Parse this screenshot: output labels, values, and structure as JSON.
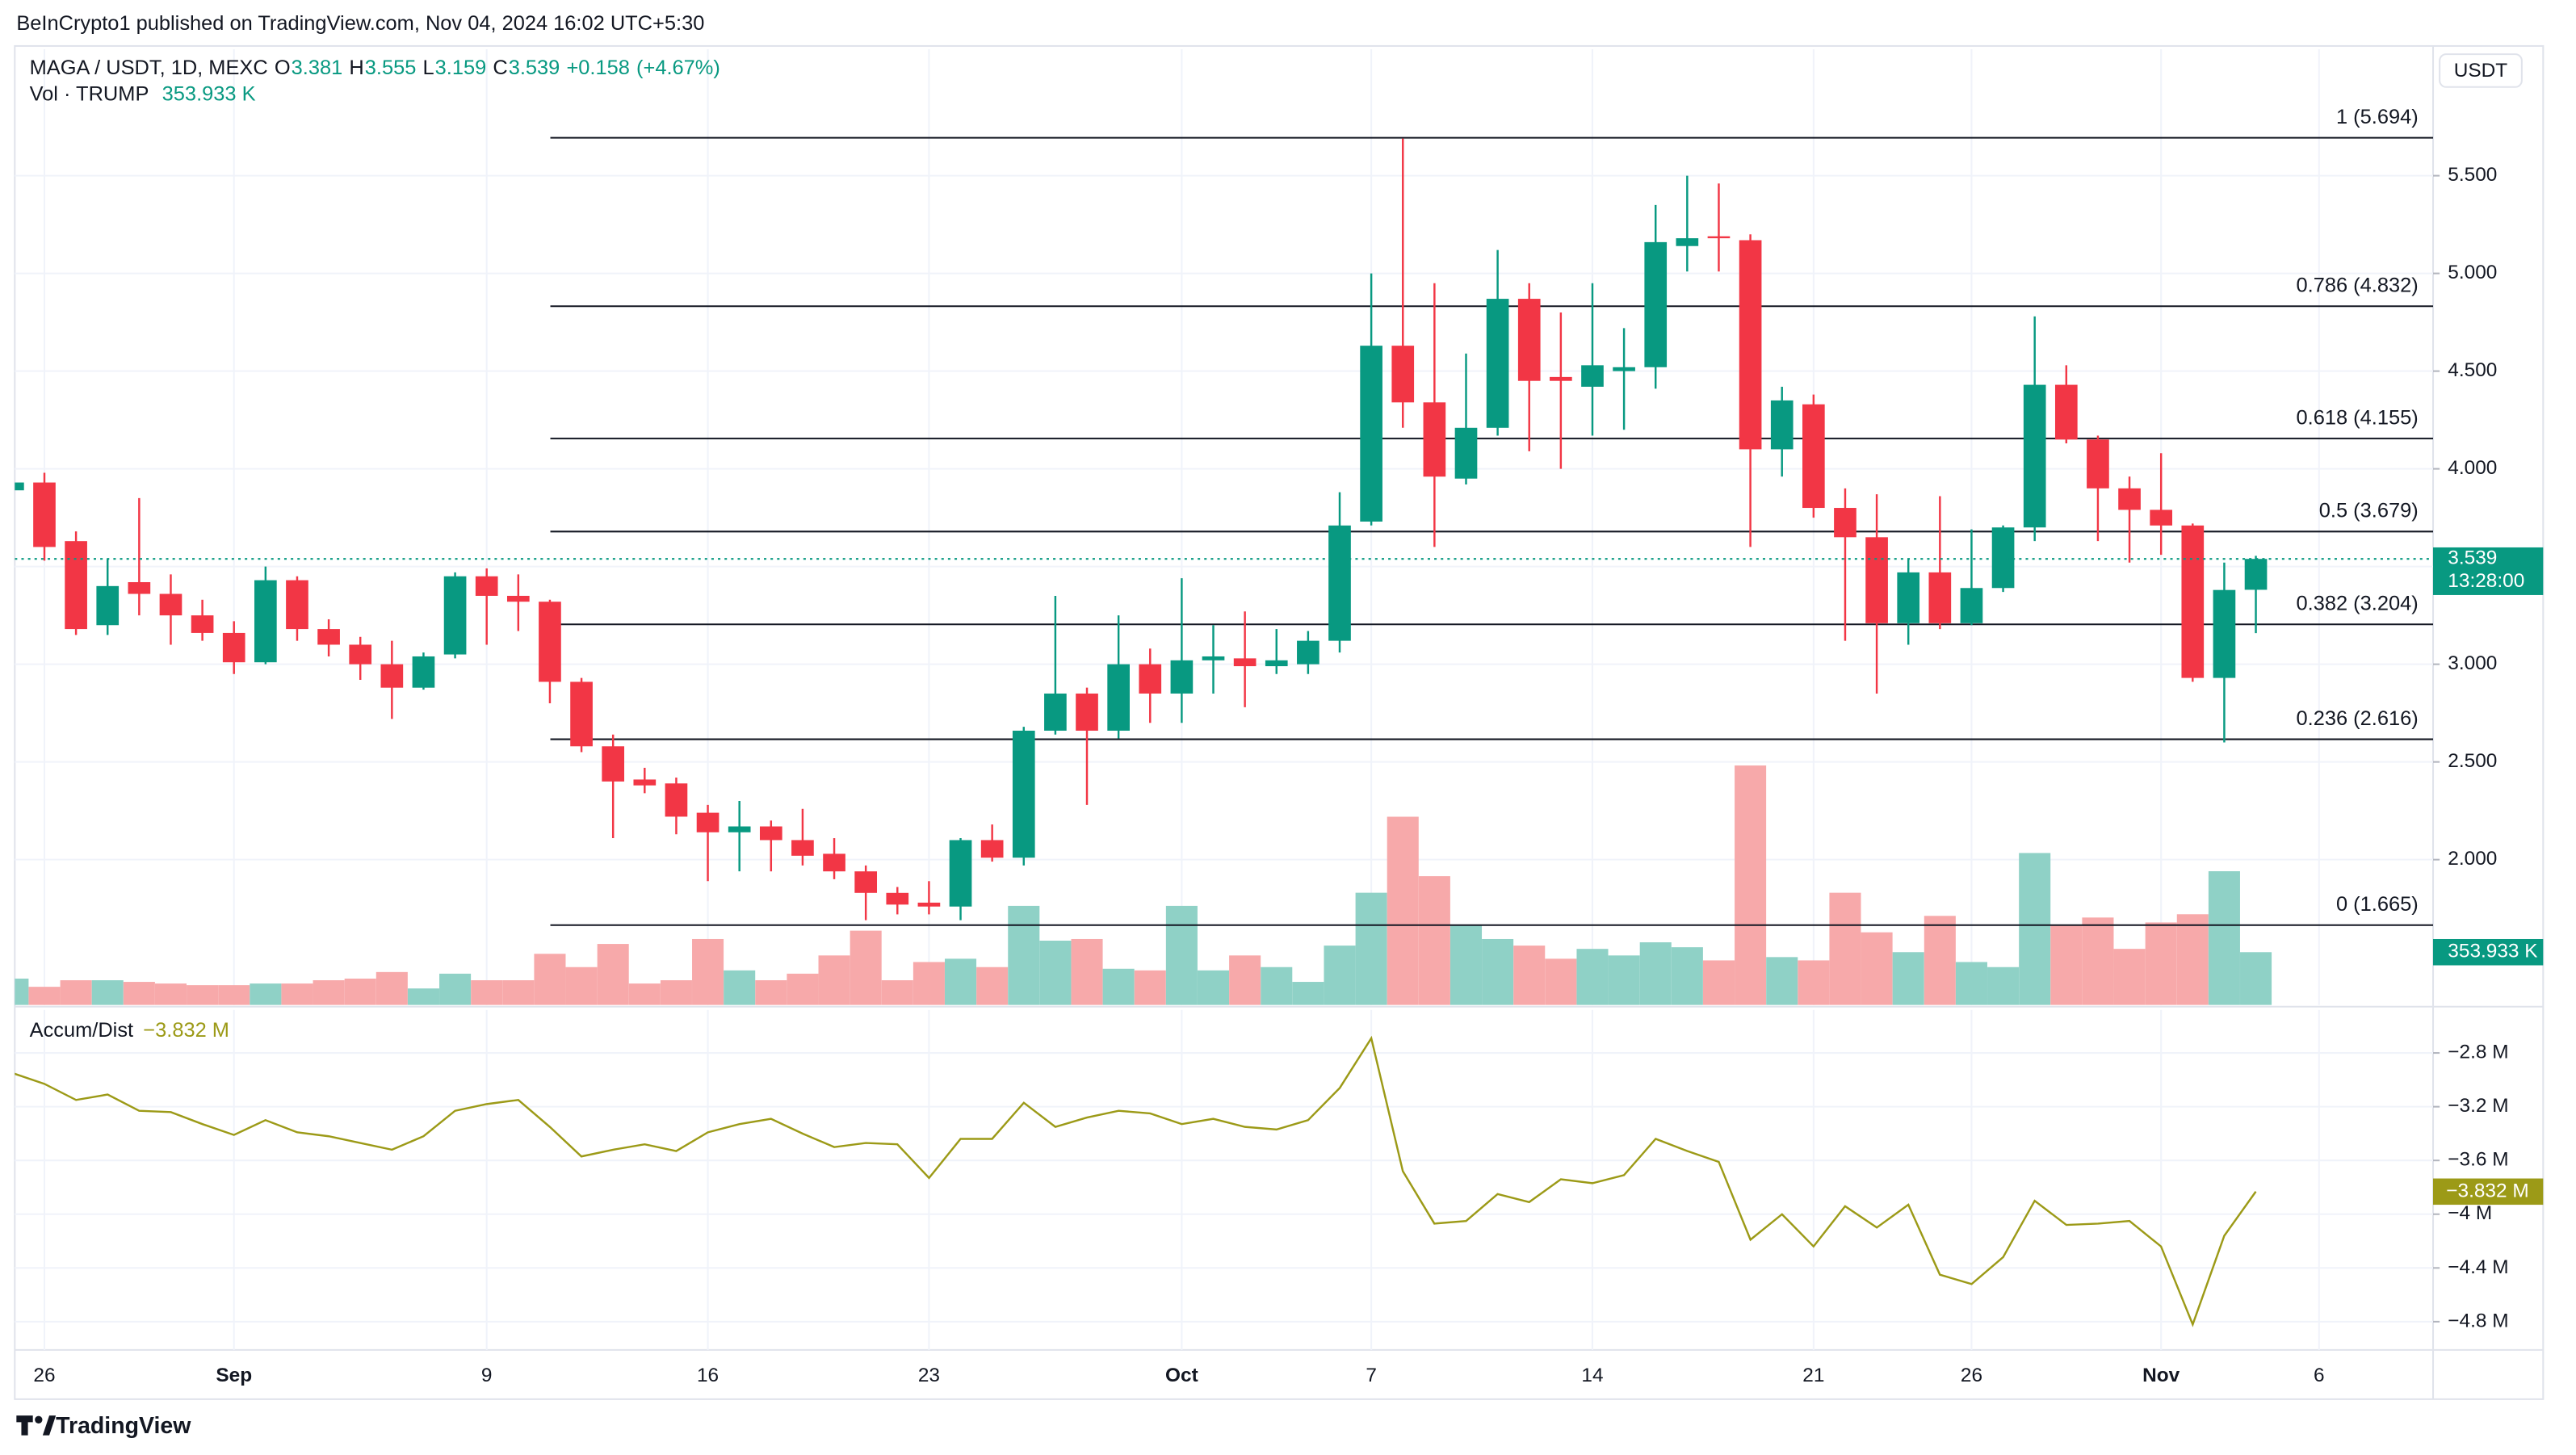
{
  "chart_data": {
    "type": "candlestick",
    "published": "BeInCrypto1 published on TradingView.com, Nov 04, 2024 16:02 UTC+5:30",
    "symbol": "MAGA / USDT, 1D, MEXC",
    "ohlc_legend": [
      {
        "label": "O",
        "value": 3.381
      },
      {
        "label": "H",
        "value": 3.555
      },
      {
        "label": "L",
        "value": 3.159
      },
      {
        "label": "C",
        "value": 3.539
      }
    ],
    "change": {
      "value": 0.158,
      "label": "+0.158"
    },
    "change_pct": {
      "value": 4.67,
      "label": "(+4.67%)"
    },
    "currency": "USDT",
    "brand": "TradingView",
    "categories": [
      null,
      "26",
      null,
      null,
      null,
      null,
      null,
      "Sep",
      null,
      null,
      null,
      null,
      null,
      null,
      null,
      "9",
      null,
      null,
      null,
      null,
      null,
      null,
      "16",
      null,
      null,
      null,
      null,
      null,
      null,
      "23",
      null,
      null,
      null,
      null,
      null,
      null,
      null,
      "Oct",
      null,
      null,
      null,
      null,
      null,
      "7",
      null,
      null,
      null,
      null,
      null,
      null,
      "14",
      null,
      null,
      null,
      null,
      null,
      null,
      "21",
      null,
      null,
      null,
      null,
      "26",
      null,
      null,
      null,
      null,
      null,
      "Nov",
      null,
      null,
      null,
      null,
      "6"
    ],
    "open": [
      3.89,
      3.93,
      3.63,
      3.2,
      3.42,
      3.36,
      3.25,
      3.16,
      3.01,
      3.43,
      3.18,
      3.1,
      3.0,
      2.88,
      3.05,
      3.45,
      3.35,
      3.32,
      2.91,
      2.58,
      2.41,
      2.39,
      2.24,
      2.14,
      2.17,
      2.1,
      2.03,
      1.94,
      1.83,
      1.78,
      1.76,
      2.1,
      2.01,
      2.66,
      2.85,
      2.66,
      3.0,
      2.85,
      3.02,
      3.03,
      2.99,
      3.0,
      3.12,
      3.73,
      4.63,
      4.34,
      3.95,
      4.21,
      4.87,
      4.47,
      4.42,
      4.5,
      4.52,
      5.14,
      5.19,
      5.17,
      4.1,
      4.33,
      3.8,
      3.65,
      3.21,
      3.47,
      3.21,
      3.39,
      3.7,
      4.43,
      4.15,
      3.9,
      3.79,
      3.71,
      2.93,
      3.381,
      null,
      null
    ],
    "high": [
      3.95,
      3.98,
      3.68,
      3.54,
      3.85,
      3.46,
      3.33,
      3.22,
      3.5,
      3.45,
      3.23,
      3.14,
      3.12,
      3.06,
      3.47,
      3.49,
      3.46,
      3.33,
      2.93,
      2.64,
      2.47,
      2.42,
      2.28,
      2.3,
      2.2,
      2.26,
      2.11,
      1.97,
      1.86,
      1.89,
      2.11,
      2.18,
      2.68,
      3.35,
      2.88,
      3.25,
      3.08,
      3.44,
      3.2,
      3.27,
      3.18,
      3.17,
      3.88,
      5.0,
      5.69,
      4.95,
      4.59,
      5.12,
      4.95,
      4.8,
      4.95,
      4.72,
      5.35,
      5.5,
      5.46,
      5.2,
      4.42,
      4.38,
      3.9,
      3.87,
      3.54,
      3.86,
      3.69,
      3.71,
      4.78,
      4.53,
      4.17,
      3.96,
      4.08,
      3.72,
      3.52,
      3.555,
      null,
      null
    ],
    "low": [
      3.88,
      3.53,
      3.15,
      3.15,
      3.25,
      3.1,
      3.12,
      2.95,
      3.0,
      3.12,
      3.04,
      2.92,
      2.72,
      2.87,
      3.03,
      3.1,
      3.17,
      2.8,
      2.55,
      2.11,
      2.34,
      2.13,
      1.89,
      1.94,
      1.94,
      1.97,
      1.9,
      1.69,
      1.72,
      1.72,
      1.69,
      1.99,
      1.97,
      2.64,
      2.28,
      2.62,
      2.7,
      2.7,
      2.85,
      2.78,
      2.95,
      2.95,
      3.06,
      3.71,
      4.21,
      3.6,
      3.92,
      4.17,
      4.09,
      4.0,
      4.17,
      4.2,
      4.41,
      5.01,
      5.01,
      3.6,
      3.96,
      3.75,
      3.12,
      2.85,
      3.1,
      3.18,
      3.2,
      3.37,
      3.63,
      4.13,
      3.63,
      3.52,
      3.56,
      2.91,
      2.6,
      3.159,
      null,
      null
    ],
    "close": [
      3.93,
      3.6,
      3.18,
      3.4,
      3.36,
      3.25,
      3.16,
      3.01,
      3.43,
      3.18,
      3.1,
      3.0,
      2.88,
      3.04,
      3.45,
      3.35,
      3.32,
      2.91,
      2.58,
      2.4,
      2.38,
      2.22,
      2.14,
      2.17,
      2.1,
      2.02,
      1.94,
      1.83,
      1.77,
      1.76,
      2.1,
      2.01,
      2.66,
      2.85,
      2.66,
      3.0,
      2.85,
      3.02,
      3.04,
      2.99,
      3.02,
      3.12,
      3.71,
      4.63,
      4.34,
      3.96,
      4.21,
      4.87,
      4.45,
      4.45,
      4.53,
      4.52,
      5.16,
      5.18,
      5.18,
      4.1,
      4.35,
      3.8,
      3.65,
      3.21,
      3.47,
      3.21,
      3.39,
      3.7,
      4.43,
      4.15,
      3.9,
      3.79,
      3.71,
      2.93,
      3.38,
      3.539,
      null,
      null
    ],
    "up_color": "#089981",
    "down_color": "#f23645",
    "ylim": [
      1.256,
      6.147
    ],
    "yticks": [
      {
        "value": 2,
        "label": "2.000"
      },
      {
        "value": 2.5,
        "label": "2.500"
      },
      {
        "value": 3,
        "label": "3.000"
      },
      {
        "value": 3.5,
        "label": "3.500"
      },
      {
        "value": 4,
        "label": "4.000"
      },
      {
        "value": 4.5,
        "label": "4.500"
      },
      {
        "value": 5,
        "label": "5.000"
      },
      {
        "value": 5.5,
        "label": "5.500"
      }
    ],
    "grid": true,
    "last_price": {
      "value": 3.539,
      "label": "3.539"
    },
    "countdown": "13:28:00",
    "fib_levels": [
      {
        "label": "1 (5.694)",
        "value": 5.694
      },
      {
        "label": "0.786 (4.832)",
        "value": 4.832
      },
      {
        "label": "0.618 (4.155)",
        "value": 4.155
      },
      {
        "label": "0.5 (3.679)",
        "value": 3.679
      },
      {
        "label": "0.382 (3.204)",
        "value": 3.204
      },
      {
        "label": "0.236 (2.616)",
        "value": 2.616
      },
      {
        "label": "0 (1.665)",
        "value": 1.665
      }
    ],
    "volume": {
      "name": "Vol · TRUMP",
      "last_label": "353.933 K",
      "ylim": [
        0,
        6400000
      ],
      "up_color": "#8fd1c6",
      "down_color": "#f7a9aa",
      "values": [
        177000,
        122000,
        166000,
        166000,
        155000,
        144000,
        133000,
        133000,
        144000,
        144000,
        166000,
        177000,
        221000,
        111000,
        210000,
        166000,
        166000,
        343000,
        254000,
        409000,
        144000,
        166000,
        442000,
        232000,
        166000,
        210000,
        332000,
        498000,
        166000,
        288000,
        310000,
        254000,
        664000,
        431000,
        442000,
        243000,
        232000,
        664000,
        232000,
        332000,
        254000,
        155000,
        398000,
        752000,
        1261000,
        863000,
        531000,
        442000,
        398000,
        310000,
        376000,
        332000,
        420000,
        387000,
        299000,
        1604000,
        321000,
        299000,
        752000,
        487000,
        354000,
        597000,
        288000,
        254000,
        1018000,
        531000,
        586000,
        376000,
        553000,
        608000,
        896000,
        353933,
        null,
        null
      ]
    },
    "indicator": {
      "name": "Accum/Dist",
      "last_label": "−3.832 M",
      "color": "#9c9a17",
      "ylim": [
        -5.01,
        -2.48
      ],
      "yticks": [
        {
          "value": -2.8,
          "label": "−2.8 M"
        },
        {
          "value": -3.2,
          "label": "−3.2 M"
        },
        {
          "value": -3.6,
          "label": "−3.6 M"
        },
        {
          "value": -4,
          "label": "−4 M"
        },
        {
          "value": -4.4,
          "label": "−4.4 M"
        },
        {
          "value": -4.8,
          "label": "−4.8 M"
        }
      ],
      "values": [
        -2.95,
        -3.03,
        -3.15,
        -3.11,
        -3.23,
        -3.24,
        -3.33,
        -3.41,
        -3.3,
        -3.39,
        -3.42,
        -3.47,
        -3.52,
        -3.42,
        -3.23,
        -3.18,
        -3.15,
        -3.35,
        -3.57,
        -3.52,
        -3.48,
        -3.53,
        -3.39,
        -3.33,
        -3.29,
        -3.4,
        -3.5,
        -3.47,
        -3.48,
        -3.73,
        -3.44,
        -3.44,
        -3.17,
        -3.35,
        -3.28,
        -3.23,
        -3.25,
        -3.33,
        -3.29,
        -3.35,
        -3.37,
        -3.3,
        -3.06,
        -2.69,
        -3.68,
        -4.07,
        -4.05,
        -3.85,
        -3.91,
        -3.74,
        -3.77,
        -3.71,
        -3.44,
        -3.53,
        -3.61,
        -4.19,
        -4.0,
        -4.24,
        -3.94,
        -4.1,
        -3.93,
        -4.45,
        -4.52,
        -4.32,
        -3.9,
        -4.08,
        -4.07,
        -4.05,
        -4.24,
        -4.82,
        -4.16,
        -3.832,
        null,
        null
      ]
    }
  }
}
